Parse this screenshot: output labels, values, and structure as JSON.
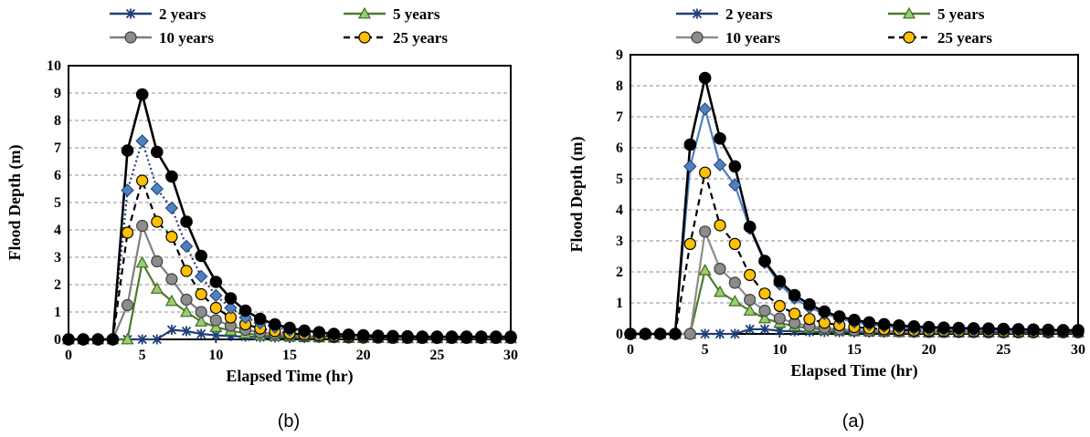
{
  "chart_data": [
    {
      "type": "line",
      "caption": "(b)",
      "xlabel": "Elapsed Time (hr)",
      "ylabel": "Flood Depth (m)",
      "xlim": [
        0,
        30
      ],
      "ylim": [
        0,
        10
      ],
      "xticks": [
        0,
        5,
        10,
        15,
        20,
        25,
        30
      ],
      "yticks": [
        0,
        1,
        2,
        3,
        4,
        5,
        6,
        7,
        8,
        9,
        10
      ],
      "grid": "horizontal-dashed",
      "legend_position": "top",
      "x": [
        0,
        1,
        2,
        3,
        4,
        5,
        6,
        7,
        8,
        9,
        10,
        11,
        12,
        13,
        14,
        15,
        16,
        17,
        18,
        19,
        20,
        21,
        22,
        23,
        24,
        25,
        26,
        27,
        28,
        29,
        30
      ],
      "series": [
        {
          "name": "2 years",
          "color": "#1f3f7a",
          "dash": "solid",
          "marker": "star",
          "values": [
            0,
            0,
            0,
            0,
            0,
            0,
            0,
            0.35,
            0.3,
            0.2,
            0.15,
            0.12,
            0.1,
            0.08,
            0.07,
            0.06,
            0.05,
            0.05,
            0.05,
            0.04,
            0.04,
            0.04,
            0.04,
            0.03,
            0.03,
            0.03,
            0.03,
            0.03,
            0.03,
            0.03,
            0.03
          ]
        },
        {
          "name": "5 years",
          "color": "#4e7a2e",
          "dash": "solid",
          "marker": "triangle",
          "values": [
            0,
            0,
            0,
            0,
            0,
            2.8,
            1.85,
            1.4,
            1.0,
            0.65,
            0.45,
            0.32,
            0.22,
            0.15,
            0.12,
            0.1,
            0.08,
            0.07,
            0.06,
            0.05,
            0.05,
            0.05,
            0.04,
            0.04,
            0.04,
            0.04,
            0.04,
            0.04,
            0.04,
            0.04,
            0.04
          ]
        },
        {
          "name": "10 years",
          "color": "#7f7f7f",
          "dash": "solid",
          "marker": "circle-gray",
          "values": [
            0,
            0,
            0,
            0,
            1.25,
            4.15,
            2.85,
            2.2,
            1.45,
            1.0,
            0.7,
            0.5,
            0.35,
            0.25,
            0.2,
            0.15,
            0.12,
            0.1,
            0.08,
            0.07,
            0.06,
            0.06,
            0.05,
            0.05,
            0.05,
            0.05,
            0.05,
            0.05,
            0.05,
            0.05,
            0.05
          ]
        },
        {
          "name": "25 years",
          "color": "#000000",
          "dash": "dashed",
          "marker": "circle-yellow",
          "values": [
            0,
            0,
            0,
            0,
            3.9,
            5.8,
            4.3,
            3.75,
            2.5,
            1.65,
            1.15,
            0.8,
            0.55,
            0.4,
            0.3,
            0.22,
            0.18,
            0.15,
            0.12,
            0.1,
            0.09,
            0.08,
            0.07,
            0.07,
            0.06,
            0.06,
            0.06,
            0.06,
            0.06,
            0.06,
            0.06
          ]
        },
        {
          "name": "",
          "color": "#1f3f7a",
          "dash": "dotted",
          "marker": "diamond",
          "values": [
            0,
            0,
            0,
            0,
            5.45,
            7.25,
            5.5,
            4.8,
            3.4,
            2.3,
            1.6,
            1.15,
            0.8,
            0.6,
            0.45,
            0.33,
            0.25,
            0.2,
            0.16,
            0.14,
            0.12,
            0.11,
            0.1,
            0.1,
            0.09,
            0.09,
            0.09,
            0.09,
            0.09,
            0.09,
            0.09
          ]
        },
        {
          "name": "",
          "color": "#000000",
          "dash": "solid",
          "marker": "circle-black",
          "values": [
            0,
            0,
            0,
            0,
            6.9,
            8.95,
            6.85,
            5.95,
            4.3,
            3.05,
            2.1,
            1.5,
            1.05,
            0.75,
            0.55,
            0.42,
            0.32,
            0.26,
            0.2,
            0.17,
            0.15,
            0.13,
            0.12,
            0.11,
            0.1,
            0.1,
            0.1,
            0.1,
            0.1,
            0.1,
            0.1
          ]
        }
      ]
    },
    {
      "type": "line",
      "caption": "(a)",
      "xlabel": "Elapsed Time (hr)",
      "ylabel": "Flood Depth (m)",
      "xlim": [
        0,
        30
      ],
      "ylim": [
        0,
        9
      ],
      "xticks": [
        0,
        5,
        10,
        15,
        20,
        25,
        30
      ],
      "yticks": [
        0,
        1,
        2,
        3,
        4,
        5,
        6,
        7,
        8,
        9
      ],
      "grid": "horizontal-dashed",
      "legend_position": "top",
      "x": [
        0,
        1,
        2,
        3,
        4,
        5,
        6,
        7,
        8,
        9,
        10,
        11,
        12,
        13,
        14,
        15,
        16,
        17,
        18,
        19,
        20,
        21,
        22,
        23,
        24,
        25,
        26,
        27,
        28,
        29,
        30
      ],
      "series": [
        {
          "name": "2 years",
          "color": "#1f3f7a",
          "dash": "solid",
          "marker": "star",
          "values": [
            0,
            0,
            0,
            0,
            0,
            0,
            0,
            0,
            0.15,
            0.15,
            0.1,
            0.08,
            0.07,
            0.06,
            0.05,
            0.05,
            0.04,
            0.04,
            0.04,
            0.03,
            0.03,
            0.03,
            0.03,
            0.03,
            0.03,
            0.03,
            0.03,
            0.03,
            0.03,
            0.03,
            0.03
          ]
        },
        {
          "name": "5 years",
          "color": "#4e7a2e",
          "dash": "solid",
          "marker": "triangle",
          "values": [
            0,
            0,
            0,
            0,
            0,
            2.05,
            1.35,
            1.05,
            0.75,
            0.5,
            0.35,
            0.25,
            0.18,
            0.14,
            0.11,
            0.09,
            0.08,
            0.07,
            0.06,
            0.06,
            0.05,
            0.05,
            0.05,
            0.05,
            0.05,
            0.05,
            0.05,
            0.05,
            0.05,
            0.05,
            0.05
          ]
        },
        {
          "name": "10 years",
          "color": "#8c8c8c",
          "dash": "solid",
          "marker": "circle-gray",
          "values": [
            0,
            0,
            0,
            0,
            0,
            3.3,
            2.1,
            1.65,
            1.1,
            0.75,
            0.5,
            0.35,
            0.25,
            0.2,
            0.15,
            0.12,
            0.1,
            0.09,
            0.08,
            0.07,
            0.06,
            0.06,
            0.06,
            0.06,
            0.05,
            0.05,
            0.05,
            0.05,
            0.05,
            0.05,
            0.05
          ]
        },
        {
          "name": "25 years",
          "color": "#000000",
          "dash": "dashed",
          "marker": "circle-yellow",
          "values": [
            0,
            0,
            0,
            0,
            2.9,
            5.2,
            3.5,
            2.9,
            1.9,
            1.3,
            0.9,
            0.65,
            0.48,
            0.36,
            0.28,
            0.22,
            0.18,
            0.15,
            0.13,
            0.11,
            0.1,
            0.09,
            0.08,
            0.08,
            0.08,
            0.07,
            0.07,
            0.07,
            0.07,
            0.07,
            0.07
          ]
        },
        {
          "name": "",
          "color": "#4f7fc4",
          "dash": "solid",
          "marker": "diamond",
          "values": [
            0,
            0,
            0,
            0,
            5.4,
            7.25,
            5.45,
            4.8,
            3.4,
            2.3,
            1.6,
            1.15,
            0.85,
            0.65,
            0.5,
            0.38,
            0.3,
            0.25,
            0.2,
            0.17,
            0.15,
            0.13,
            0.12,
            0.11,
            0.1,
            0.1,
            0.1,
            0.1,
            0.1,
            0.1,
            0.1
          ]
        },
        {
          "name": "",
          "color": "#000000",
          "dash": "solid",
          "marker": "circle-black",
          "values": [
            0,
            0,
            0,
            0,
            6.1,
            8.25,
            6.3,
            5.4,
            3.45,
            2.35,
            1.7,
            1.25,
            0.95,
            0.72,
            0.56,
            0.45,
            0.37,
            0.31,
            0.27,
            0.24,
            0.22,
            0.2,
            0.19,
            0.18,
            0.17,
            0.16,
            0.15,
            0.14,
            0.13,
            0.12,
            0.12
          ]
        }
      ]
    }
  ]
}
